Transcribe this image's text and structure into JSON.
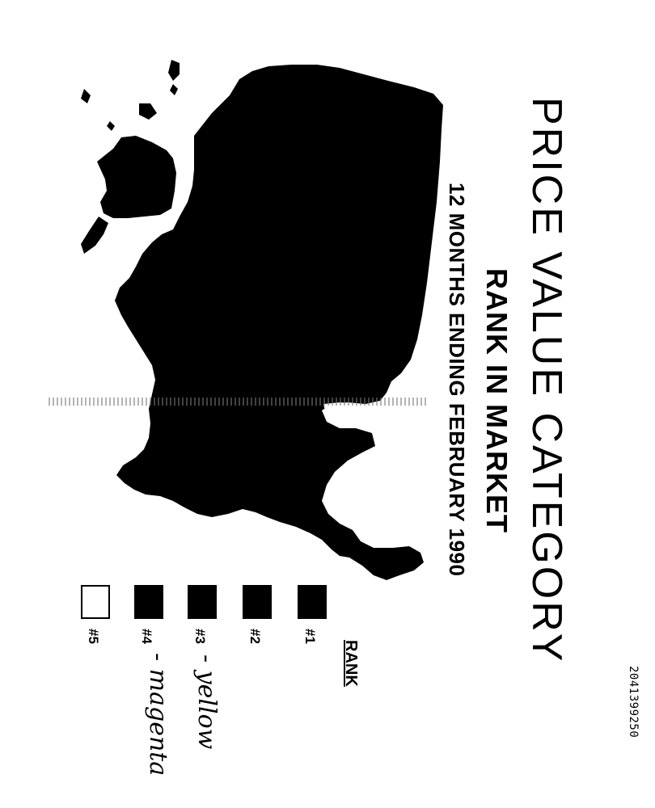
{
  "title": "PRICE VALUE CATEGORY",
  "subtitle": "RANK IN MARKET",
  "period": "12 MONTHS ENDING FEBRUARY 1990",
  "legend": {
    "title": "RANK",
    "items": [
      {
        "label": "#1",
        "fill": "#000000",
        "note": ""
      },
      {
        "label": "#2",
        "fill": "#000000",
        "note": ""
      },
      {
        "label": "#3",
        "fill": "#000000",
        "note": "- yellow"
      },
      {
        "label": "#4",
        "fill": "#000000",
        "note": "- magenta"
      },
      {
        "label": "#5",
        "fill": "#ffffff",
        "note": ""
      }
    ]
  },
  "doc_id": "2041399250",
  "colors": {
    "ink": "#000000",
    "paper": "#ffffff"
  }
}
